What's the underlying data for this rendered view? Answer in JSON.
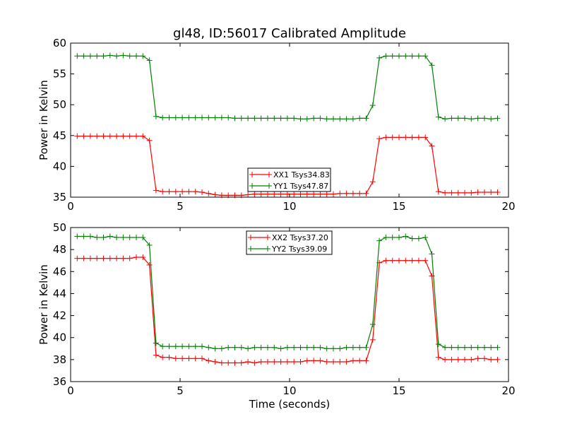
{
  "figure": {
    "title": "gl48, ID:56017 Calibrated Amplitude"
  },
  "chart_data": [
    {
      "type": "line",
      "title": "gl48, ID:56017 Calibrated Amplitude",
      "xlabel": "",
      "ylabel": "Power in Kelvin",
      "xlim": [
        0,
        20
      ],
      "ylim": [
        35,
        60
      ],
      "xticks": [
        "0",
        "5",
        "10",
        "15",
        "20"
      ],
      "yticks": [
        "35",
        "40",
        "45",
        "50",
        "55",
        "60"
      ],
      "grid": false,
      "legend_position": "lower-center",
      "x": [
        0.3,
        0.6,
        0.9,
        1.2,
        1.5,
        1.8,
        2.1,
        2.4,
        2.7,
        3.0,
        3.3,
        3.6,
        3.9,
        4.2,
        4.5,
        4.8,
        5.1,
        5.4,
        5.7,
        6.0,
        6.3,
        6.6,
        6.9,
        7.2,
        7.5,
        7.8,
        8.1,
        8.4,
        8.7,
        9.0,
        9.3,
        9.6,
        9.9,
        10.2,
        10.5,
        10.8,
        11.1,
        11.4,
        11.7,
        12.0,
        12.3,
        12.6,
        12.9,
        13.2,
        13.5,
        13.8,
        14.1,
        14.4,
        14.7,
        15.0,
        15.3,
        15.6,
        15.9,
        16.2,
        16.5,
        16.8,
        17.1,
        17.4,
        17.7,
        18.0,
        18.3,
        18.6,
        18.9,
        19.2,
        19.5
      ],
      "series": [
        {
          "name": "XX1 Tsys34.83",
          "color": "#ff0000",
          "values": [
            44.9,
            44.9,
            44.9,
            44.9,
            44.9,
            44.9,
            44.9,
            44.9,
            44.9,
            44.9,
            44.9,
            44.2,
            36.1,
            35.9,
            35.9,
            35.9,
            35.9,
            35.9,
            35.9,
            35.8,
            35.6,
            35.4,
            35.3,
            35.3,
            35.3,
            35.3,
            35.4,
            35.5,
            35.5,
            35.5,
            35.5,
            35.5,
            35.5,
            35.5,
            35.5,
            35.5,
            35.5,
            35.5,
            35.5,
            35.5,
            35.6,
            35.6,
            35.6,
            35.6,
            35.6,
            37.5,
            44.5,
            44.7,
            44.7,
            44.7,
            44.7,
            44.7,
            44.7,
            44.7,
            43.3,
            35.9,
            35.7,
            35.7,
            35.7,
            35.7,
            35.7,
            35.8,
            35.8,
            35.8,
            35.8
          ]
        },
        {
          "name": "YY1 Tsys47.87",
          "color": "#008000",
          "values": [
            57.9,
            57.9,
            57.9,
            57.9,
            57.9,
            58.0,
            57.9,
            58.0,
            57.9,
            57.9,
            57.9,
            57.2,
            48.1,
            47.9,
            47.9,
            47.9,
            47.9,
            47.9,
            47.9,
            47.9,
            47.9,
            47.9,
            47.9,
            47.9,
            47.8,
            47.8,
            47.8,
            47.8,
            47.8,
            47.8,
            47.8,
            47.8,
            47.8,
            47.8,
            47.7,
            47.7,
            47.8,
            47.8,
            47.7,
            47.7,
            47.7,
            47.7,
            47.7,
            47.8,
            47.8,
            49.9,
            57.6,
            57.9,
            57.9,
            57.9,
            57.9,
            57.9,
            57.9,
            57.9,
            56.4,
            48.0,
            47.7,
            47.8,
            47.8,
            47.8,
            47.7,
            47.8,
            47.8,
            47.7,
            47.8
          ]
        }
      ]
    },
    {
      "type": "line",
      "title": "",
      "xlabel": "Time (seconds)",
      "ylabel": "Power in Kelvin",
      "xlim": [
        0,
        20
      ],
      "ylim": [
        36,
        50
      ],
      "xticks": [
        "0",
        "5",
        "10",
        "15",
        "20"
      ],
      "yticks": [
        "36",
        "38",
        "40",
        "42",
        "44",
        "46",
        "48",
        "50"
      ],
      "grid": false,
      "legend_position": "upper-center",
      "x": [
        0.3,
        0.6,
        0.9,
        1.2,
        1.5,
        1.8,
        2.1,
        2.4,
        2.7,
        3.0,
        3.3,
        3.6,
        3.9,
        4.2,
        4.5,
        4.8,
        5.1,
        5.4,
        5.7,
        6.0,
        6.3,
        6.6,
        6.9,
        7.2,
        7.5,
        7.8,
        8.1,
        8.4,
        8.7,
        9.0,
        9.3,
        9.6,
        9.9,
        10.2,
        10.5,
        10.8,
        11.1,
        11.4,
        11.7,
        12.0,
        12.3,
        12.6,
        12.9,
        13.2,
        13.5,
        13.8,
        14.1,
        14.4,
        14.7,
        15.0,
        15.3,
        15.6,
        15.9,
        16.2,
        16.5,
        16.8,
        17.1,
        17.4,
        17.7,
        18.0,
        18.3,
        18.6,
        18.9,
        19.2,
        19.5
      ],
      "series": [
        {
          "name": "XX2 Tsys37.20",
          "color": "#ff0000",
          "values": [
            47.2,
            47.2,
            47.2,
            47.2,
            47.2,
            47.2,
            47.2,
            47.2,
            47.2,
            47.3,
            47.3,
            46.6,
            38.4,
            38.2,
            38.2,
            38.1,
            38.1,
            38.1,
            38.1,
            38.1,
            37.9,
            37.8,
            37.7,
            37.7,
            37.7,
            37.7,
            37.8,
            37.7,
            37.8,
            37.8,
            37.8,
            37.8,
            37.8,
            37.8,
            37.8,
            37.9,
            37.9,
            37.9,
            37.8,
            37.8,
            37.8,
            37.8,
            37.9,
            37.9,
            37.9,
            39.8,
            46.8,
            47.0,
            47.0,
            47.0,
            47.0,
            47.0,
            47.0,
            47.0,
            45.6,
            38.2,
            38.0,
            38.0,
            38.0,
            38.0,
            38.0,
            38.1,
            38.1,
            38.0,
            38.0
          ]
        },
        {
          "name": "YY2 Tsys39.09",
          "color": "#008000",
          "values": [
            49.2,
            49.2,
            49.2,
            49.1,
            49.1,
            49.2,
            49.1,
            49.1,
            49.1,
            49.1,
            49.1,
            48.4,
            39.5,
            39.2,
            39.2,
            39.2,
            39.2,
            39.2,
            39.2,
            39.2,
            39.1,
            39.0,
            39.0,
            39.1,
            39.1,
            39.1,
            39.0,
            39.1,
            39.1,
            39.1,
            39.1,
            39.0,
            39.1,
            39.1,
            39.1,
            39.1,
            39.1,
            39.1,
            39.0,
            39.0,
            39.0,
            39.1,
            39.1,
            39.1,
            39.1,
            41.2,
            48.8,
            49.1,
            49.1,
            49.1,
            49.2,
            49.0,
            49.0,
            49.1,
            47.6,
            39.4,
            39.1,
            39.1,
            39.1,
            39.1,
            39.1,
            39.1,
            39.1,
            39.1,
            39.1
          ]
        }
      ]
    }
  ]
}
